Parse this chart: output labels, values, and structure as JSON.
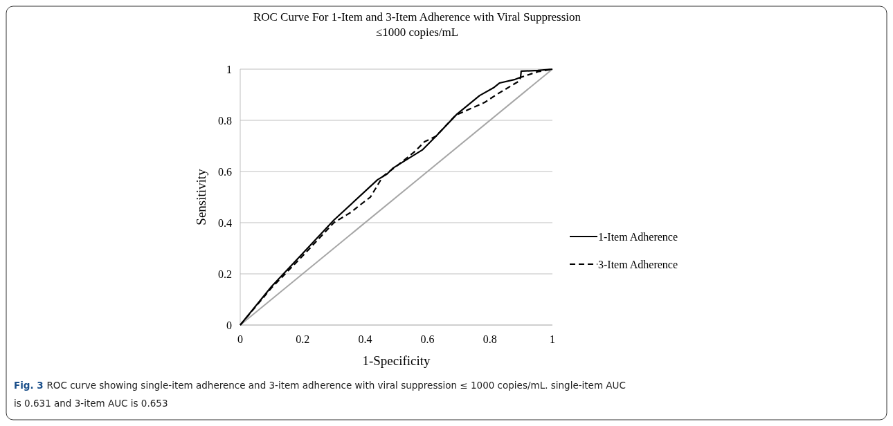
{
  "chart_data": {
    "type": "line",
    "title": "ROC Curve For 1-Item and 3-Item Adherence with Viral Suppression\n≤1000 copies/mL",
    "xlabel": "1-Specificity",
    "ylabel": "Sensitivity",
    "xlim": [
      0,
      1
    ],
    "ylim": [
      0,
      1
    ],
    "xticks": [
      0,
      0.2,
      0.4,
      0.6,
      0.8,
      1
    ],
    "yticks": [
      0,
      0.2,
      0.4,
      0.6,
      0.8,
      1
    ],
    "grid": "y",
    "legend": "right",
    "series": [
      {
        "name": "1-Item Adherence",
        "color": "#000000",
        "line_style": "solid",
        "x": [
          0,
          0.1,
          0.2,
          0.3,
          0.44,
          0.47,
          0.49,
          0.583,
          0.627,
          0.694,
          0.767,
          0.811,
          0.831,
          0.878,
          0.898,
          0.9,
          0.953,
          1
        ],
        "values": [
          0,
          0.15,
          0.28,
          0.41,
          0.568,
          0.59,
          0.614,
          0.684,
          0.738,
          0.824,
          0.897,
          0.927,
          0.946,
          0.959,
          0.968,
          0.992,
          0.995,
          1
        ]
      },
      {
        "name": "3-Item Adherence",
        "color": "#000000",
        "line_style": "dashed",
        "x": [
          0,
          0.1,
          0.2,
          0.3,
          0.355,
          0.388,
          0.417,
          0.457,
          0.5,
          0.561,
          0.59,
          0.627,
          0.69,
          0.738,
          0.783,
          0.82,
          0.894,
          0.898,
          0.953,
          1
        ],
        "values": [
          0,
          0.145,
          0.27,
          0.4,
          0.441,
          0.473,
          0.5,
          0.581,
          0.62,
          0.68,
          0.716,
          0.738,
          0.82,
          0.846,
          0.87,
          0.9,
          0.954,
          0.968,
          0.99,
          1
        ]
      },
      {
        "color": "#a6a6a6",
        "line_style": "solid",
        "x": [
          0,
          1
        ],
        "values": [
          0,
          1
        ]
      }
    ],
    "annotations": [
      "Fig. 3  ROC curve showing single-item adherence and 3-item adherence with viral suppression ≤ 1000 copies/mL. single-item AUC is 0.631 and 3-item AUC is 0.653"
    ]
  }
}
